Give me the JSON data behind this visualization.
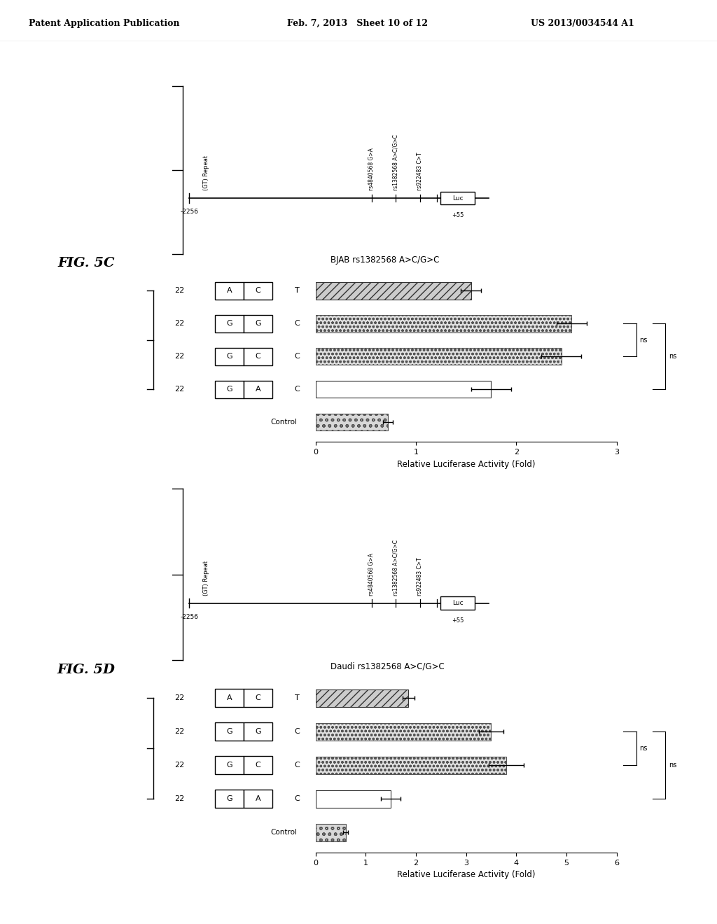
{
  "header_left": "Patent Application Publication",
  "header_mid": "Feb. 7, 2013   Sheet 10 of 12",
  "header_right": "US 2013/0034544 A1",
  "fig5c": {
    "label": "FIG. 5C",
    "title": "BJAB rs1382568 A>C/G>C",
    "bars": [
      {
        "rs922483": "T",
        "allele1": "A",
        "allele2": "C",
        "gt_repeat": "22",
        "value": 1.55,
        "error": 0.1,
        "pattern": "diag"
      },
      {
        "rs922483": "C",
        "allele1": "G",
        "allele2": "G",
        "gt_repeat": "22",
        "value": 2.55,
        "error": 0.15,
        "pattern": "heart"
      },
      {
        "rs922483": "C",
        "allele1": "G",
        "allele2": "C",
        "gt_repeat": "22",
        "value": 2.45,
        "error": 0.2,
        "pattern": "heart"
      },
      {
        "rs922483": "C",
        "allele1": "G",
        "allele2": "A",
        "gt_repeat": "22",
        "value": 1.75,
        "error": 0.2,
        "pattern": "plain"
      },
      {
        "rs922483": "Control",
        "allele1": "",
        "allele2": "",
        "gt_repeat": "",
        "value": 0.72,
        "error": 0.05,
        "pattern": "heart_sm"
      }
    ],
    "xlim": [
      0,
      3
    ],
    "xticks": [
      0,
      1,
      2,
      3
    ],
    "xlabel": "Relative Luciferase Activity (Fold)",
    "snps": [
      "rs4840568 G>A",
      "rs1382568 A>C/G>C",
      "rs922483 C>T"
    ]
  },
  "fig5d": {
    "label": "FIG. 5D",
    "title": "Daudi rs1382568 A>C/G>C",
    "bars": [
      {
        "rs922483": "T",
        "allele1": "A",
        "allele2": "C",
        "gt_repeat": "22",
        "value": 1.85,
        "error": 0.12,
        "pattern": "diag"
      },
      {
        "rs922483": "C",
        "allele1": "G",
        "allele2": "G",
        "gt_repeat": "22",
        "value": 3.5,
        "error": 0.25,
        "pattern": "heart"
      },
      {
        "rs922483": "C",
        "allele1": "G",
        "allele2": "C",
        "gt_repeat": "22",
        "value": 3.8,
        "error": 0.35,
        "pattern": "heart"
      },
      {
        "rs922483": "C",
        "allele1": "G",
        "allele2": "A",
        "gt_repeat": "22",
        "value": 1.5,
        "error": 0.2,
        "pattern": "plain"
      },
      {
        "rs922483": "Control",
        "allele1": "",
        "allele2": "",
        "gt_repeat": "",
        "value": 0.6,
        "error": 0.05,
        "pattern": "heart_sm"
      }
    ],
    "xlim": [
      0,
      6
    ],
    "xticks": [
      0,
      1,
      2,
      3,
      4,
      5,
      6
    ],
    "xlabel": "Relative Luciferase Activity (Fold)",
    "snps": [
      "rs4840568 G>A",
      "rs1382568 A>C/G>C",
      "rs922483 C>T"
    ]
  },
  "bg_color": "#ffffff"
}
